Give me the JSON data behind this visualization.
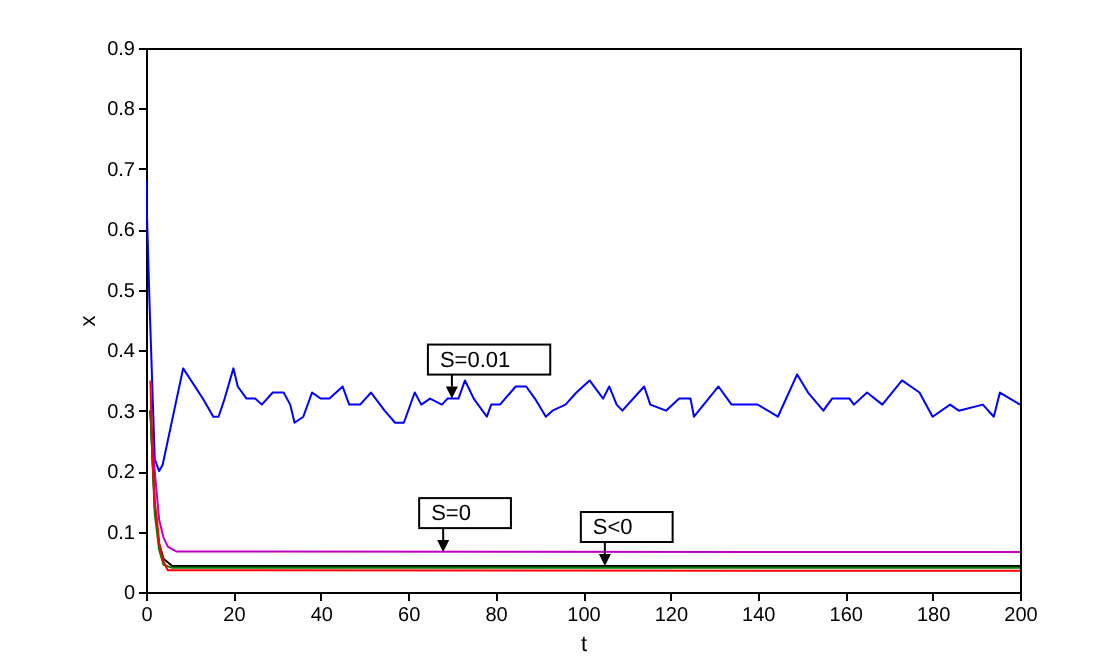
{
  "chart_data": {
    "type": "line",
    "xlabel": "t",
    "ylabel": "x",
    "xlim": [
      0,
      200
    ],
    "xticks": [
      0,
      20,
      40,
      60,
      80,
      100,
      120,
      140,
      160,
      180,
      200
    ],
    "ylim": [
      0,
      0.9
    ],
    "yticks": [
      0,
      0.1,
      0.2,
      0.3,
      0.4,
      0.5,
      0.6,
      0.7,
      0.8,
      0.9
    ],
    "grid": false,
    "legend": false,
    "series": [
      {
        "color": "#0000ff",
        "x": [
          0,
          0.8,
          2,
          3,
          3.8,
          8.5,
          13,
          15.4,
          16.6,
          18,
          20,
          21,
          23,
          25,
          26.5,
          29,
          31.5,
          33,
          34,
          36,
          38,
          40,
          42,
          45,
          46.5,
          49,
          51.5,
          54.6,
          57,
          59,
          61.5,
          63,
          65,
          67.7,
          69,
          71.5,
          73,
          75,
          78,
          79,
          81,
          84.6,
          87,
          89,
          91.5,
          93,
          96,
          98.5,
          101.5,
          104.6,
          106,
          107.7,
          109,
          114,
          115.4,
          119,
          122,
          124.6,
          125.4,
          131,
          134,
          137,
          140,
          144.6,
          149,
          151.5,
          155,
          157,
          161,
          162,
          165,
          168.5,
          173,
          177,
          180,
          184,
          186,
          191.5,
          194,
          195.4,
          197.7,
          200
        ],
        "values": [
          0.68,
          0.48,
          0.22,
          0.2,
          0.21,
          0.37,
          0.32,
          0.29,
          0.29,
          0.32,
          0.37,
          0.34,
          0.32,
          0.32,
          0.31,
          0.33,
          0.33,
          0.31,
          0.28,
          0.29,
          0.33,
          0.32,
          0.32,
          0.34,
          0.31,
          0.31,
          0.33,
          0.3,
          0.28,
          0.28,
          0.33,
          0.31,
          0.32,
          0.31,
          0.32,
          0.32,
          0.35,
          0.32,
          0.29,
          0.31,
          0.31,
          0.34,
          0.34,
          0.32,
          0.29,
          0.3,
          0.31,
          0.33,
          0.35,
          0.32,
          0.34,
          0.31,
          0.3,
          0.34,
          0.31,
          0.3,
          0.32,
          0.32,
          0.29,
          0.34,
          0.31,
          0.31,
          0.31,
          0.29,
          0.36,
          0.33,
          0.3,
          0.32,
          0.32,
          0.31,
          0.33,
          0.31,
          0.35,
          0.33,
          0.29,
          0.31,
          0.3,
          0.31,
          0.29,
          0.33,
          0.32,
          0.31
        ]
      },
      {
        "color": "#bf00bf",
        "x": [
          1,
          2,
          3,
          4,
          5,
          7,
          200
        ],
        "values": [
          0.3,
          0.2,
          0.12,
          0.09,
          0.075,
          0.067,
          0.066
        ]
      },
      {
        "color": "#000000",
        "x": [
          1,
          2,
          3,
          4,
          6,
          200
        ],
        "values": [
          0.3,
          0.14,
          0.08,
          0.055,
          0.043,
          0.043
        ]
      },
      {
        "color": "#008000",
        "x": [
          1,
          2,
          3,
          4,
          6,
          200
        ],
        "values": [
          0.3,
          0.13,
          0.07,
          0.045,
          0.04,
          0.04
        ]
      },
      {
        "color": "#ff0000",
        "x": [
          1,
          1.5,
          2,
          2.5,
          3,
          4,
          5,
          200
        ],
        "values": [
          0.35,
          0.22,
          0.15,
          0.12,
          0.08,
          0.05,
          0.036,
          0.035
        ]
      }
    ],
    "annotations": [
      {
        "text": "S=0.01",
        "x": 70,
        "y": 0.32
      },
      {
        "text": "S=0",
        "x": 68,
        "y": 0.066
      },
      {
        "text": "S<0",
        "x": 105,
        "y": 0.043
      }
    ]
  }
}
